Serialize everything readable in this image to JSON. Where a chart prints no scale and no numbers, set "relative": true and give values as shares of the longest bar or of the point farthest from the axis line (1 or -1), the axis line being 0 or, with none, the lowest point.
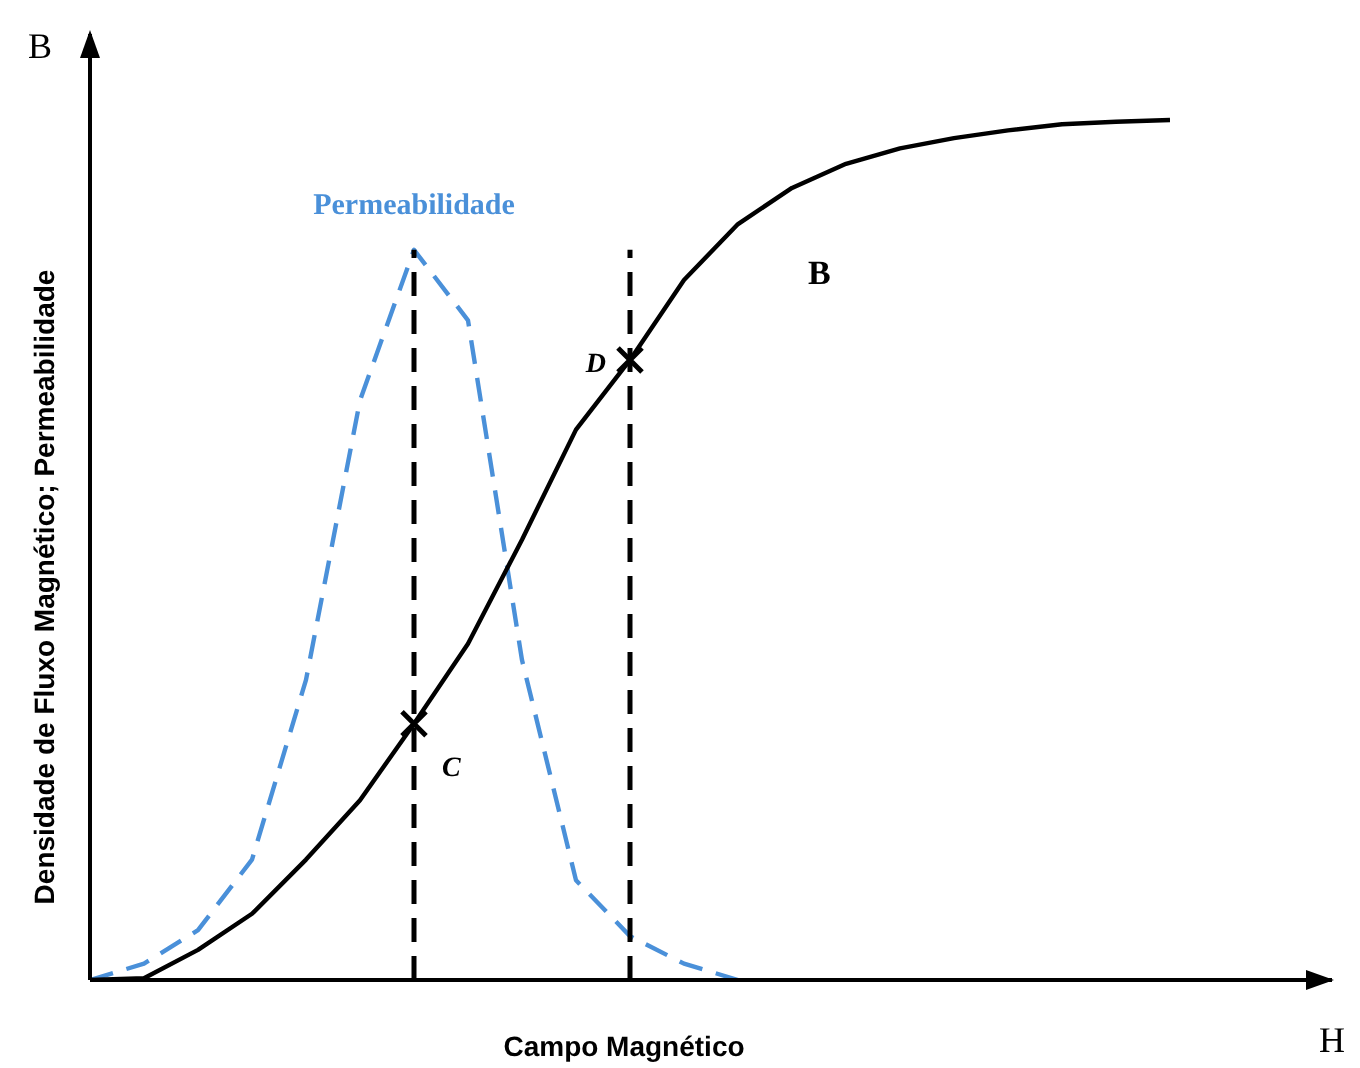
{
  "chart_data": {
    "type": "line",
    "relative": true,
    "xlabel": "Campo Magnético",
    "ylabel": "Densidade de Fluxo Magnético; Permeabilidade",
    "legend": false,
    "marker": "none",
    "categories": [
      null,
      null,
      null,
      null,
      null,
      null,
      null,
      null,
      null,
      null,
      null,
      null,
      null,
      null,
      null,
      null,
      null,
      null,
      null,
      null,
      null,
      null,
      null,
      null
    ],
    "series": [
      {
        "name": "B",
        "color": "#000000",
        "line_style": "solid",
        "values": [
          0,
          0.002,
          0.035,
          0.077,
          0.14,
          0.209,
          0.298,
          0.391,
          0.512,
          0.64,
          0.721,
          0.814,
          0.879,
          0.921,
          0.949,
          0.967,
          0.979,
          0.988,
          0.995,
          0.998,
          1,
          null,
          null,
          null
        ]
      },
      {
        "name": "Permeabilidade",
        "color": "#4a90d9",
        "line_style": "dashed",
        "values": [
          0,
          0.019,
          0.058,
          0.14,
          0.349,
          0.674,
          0.849,
          0.767,
          0.372,
          0.116,
          0.051,
          0.019,
          0,
          null,
          null,
          null,
          null,
          null,
          null,
          null,
          null,
          null,
          null,
          null
        ]
      }
    ],
    "annotations": [
      "C",
      "D",
      "B",
      "H"
    ]
  }
}
